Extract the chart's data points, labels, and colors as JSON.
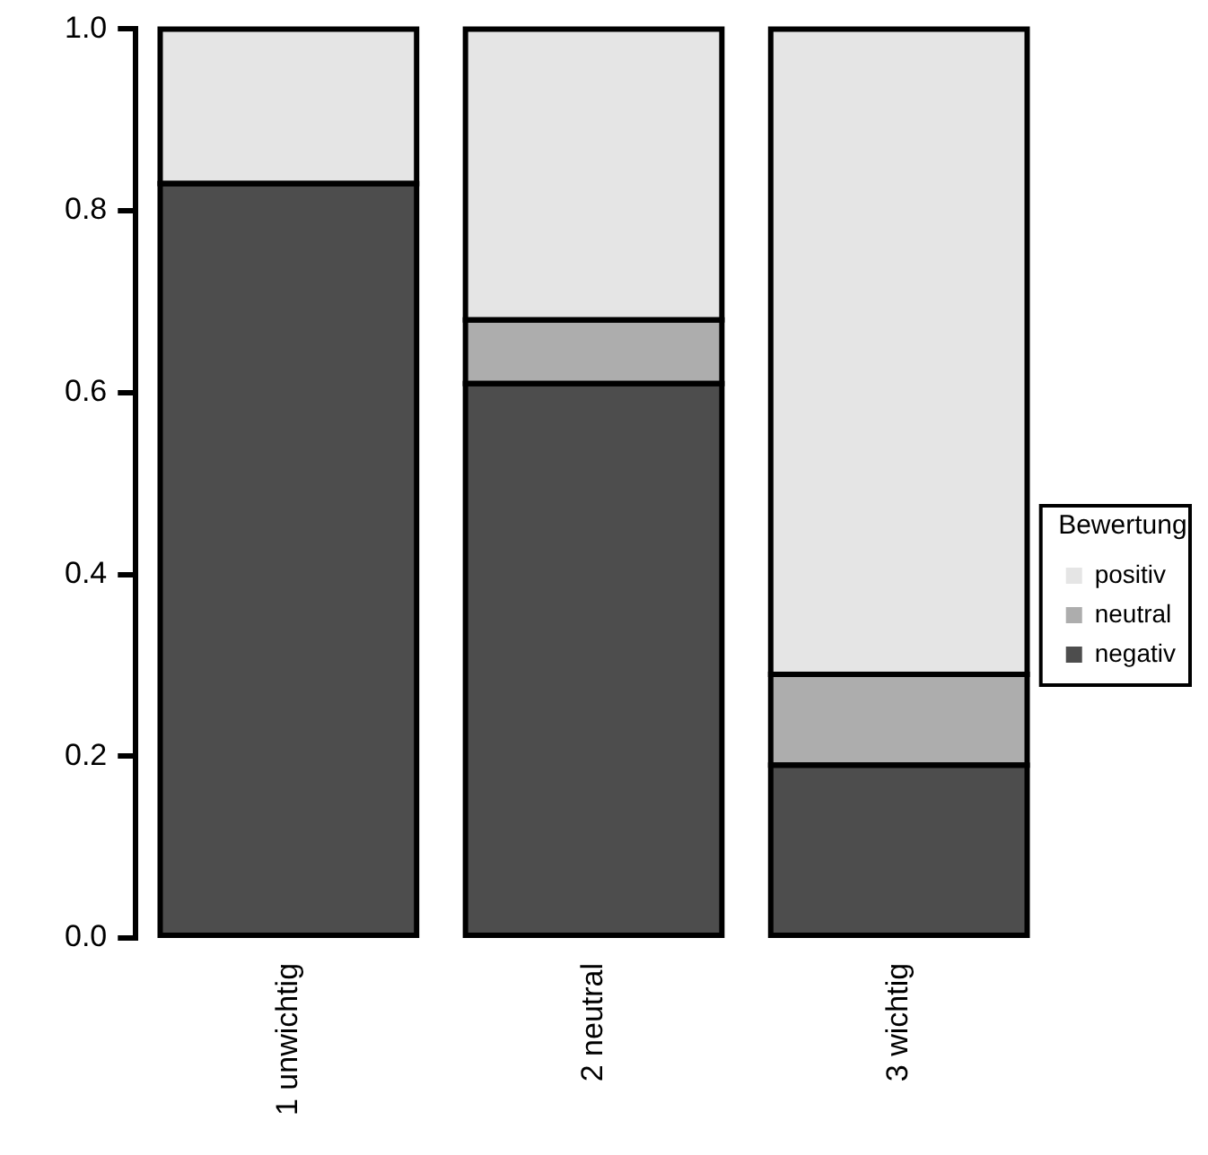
{
  "chart_data": {
    "type": "bar",
    "stacked": true,
    "legend": "right",
    "legend_title": "Bewertung",
    "categories": [
      "1 unwichtig",
      "2 neutral",
      "3 wichtig"
    ],
    "ylim": [
      0,
      1
    ],
    "yticks": [
      {
        "value": 0,
        "label": "0.0"
      },
      {
        "value": 0.2,
        "label": "0.2"
      },
      {
        "value": 0.4,
        "label": "0.4"
      },
      {
        "value": 0.6,
        "label": "0.6"
      },
      {
        "value": 0.8,
        "label": "0.8"
      },
      {
        "value": 1,
        "label": "1.0"
      }
    ],
    "grid": false,
    "series": [
      {
        "name": "negativ",
        "color": "#4d4d4d",
        "values": [
          0.83,
          0.61,
          0.19
        ]
      },
      {
        "name": "neutral",
        "color": "#adadad",
        "values": [
          0,
          0.07,
          0.1
        ]
      },
      {
        "name": "positiv",
        "color": "#e5e5e5",
        "values": [
          0.17,
          0.32,
          0.71
        ]
      }
    ]
  }
}
